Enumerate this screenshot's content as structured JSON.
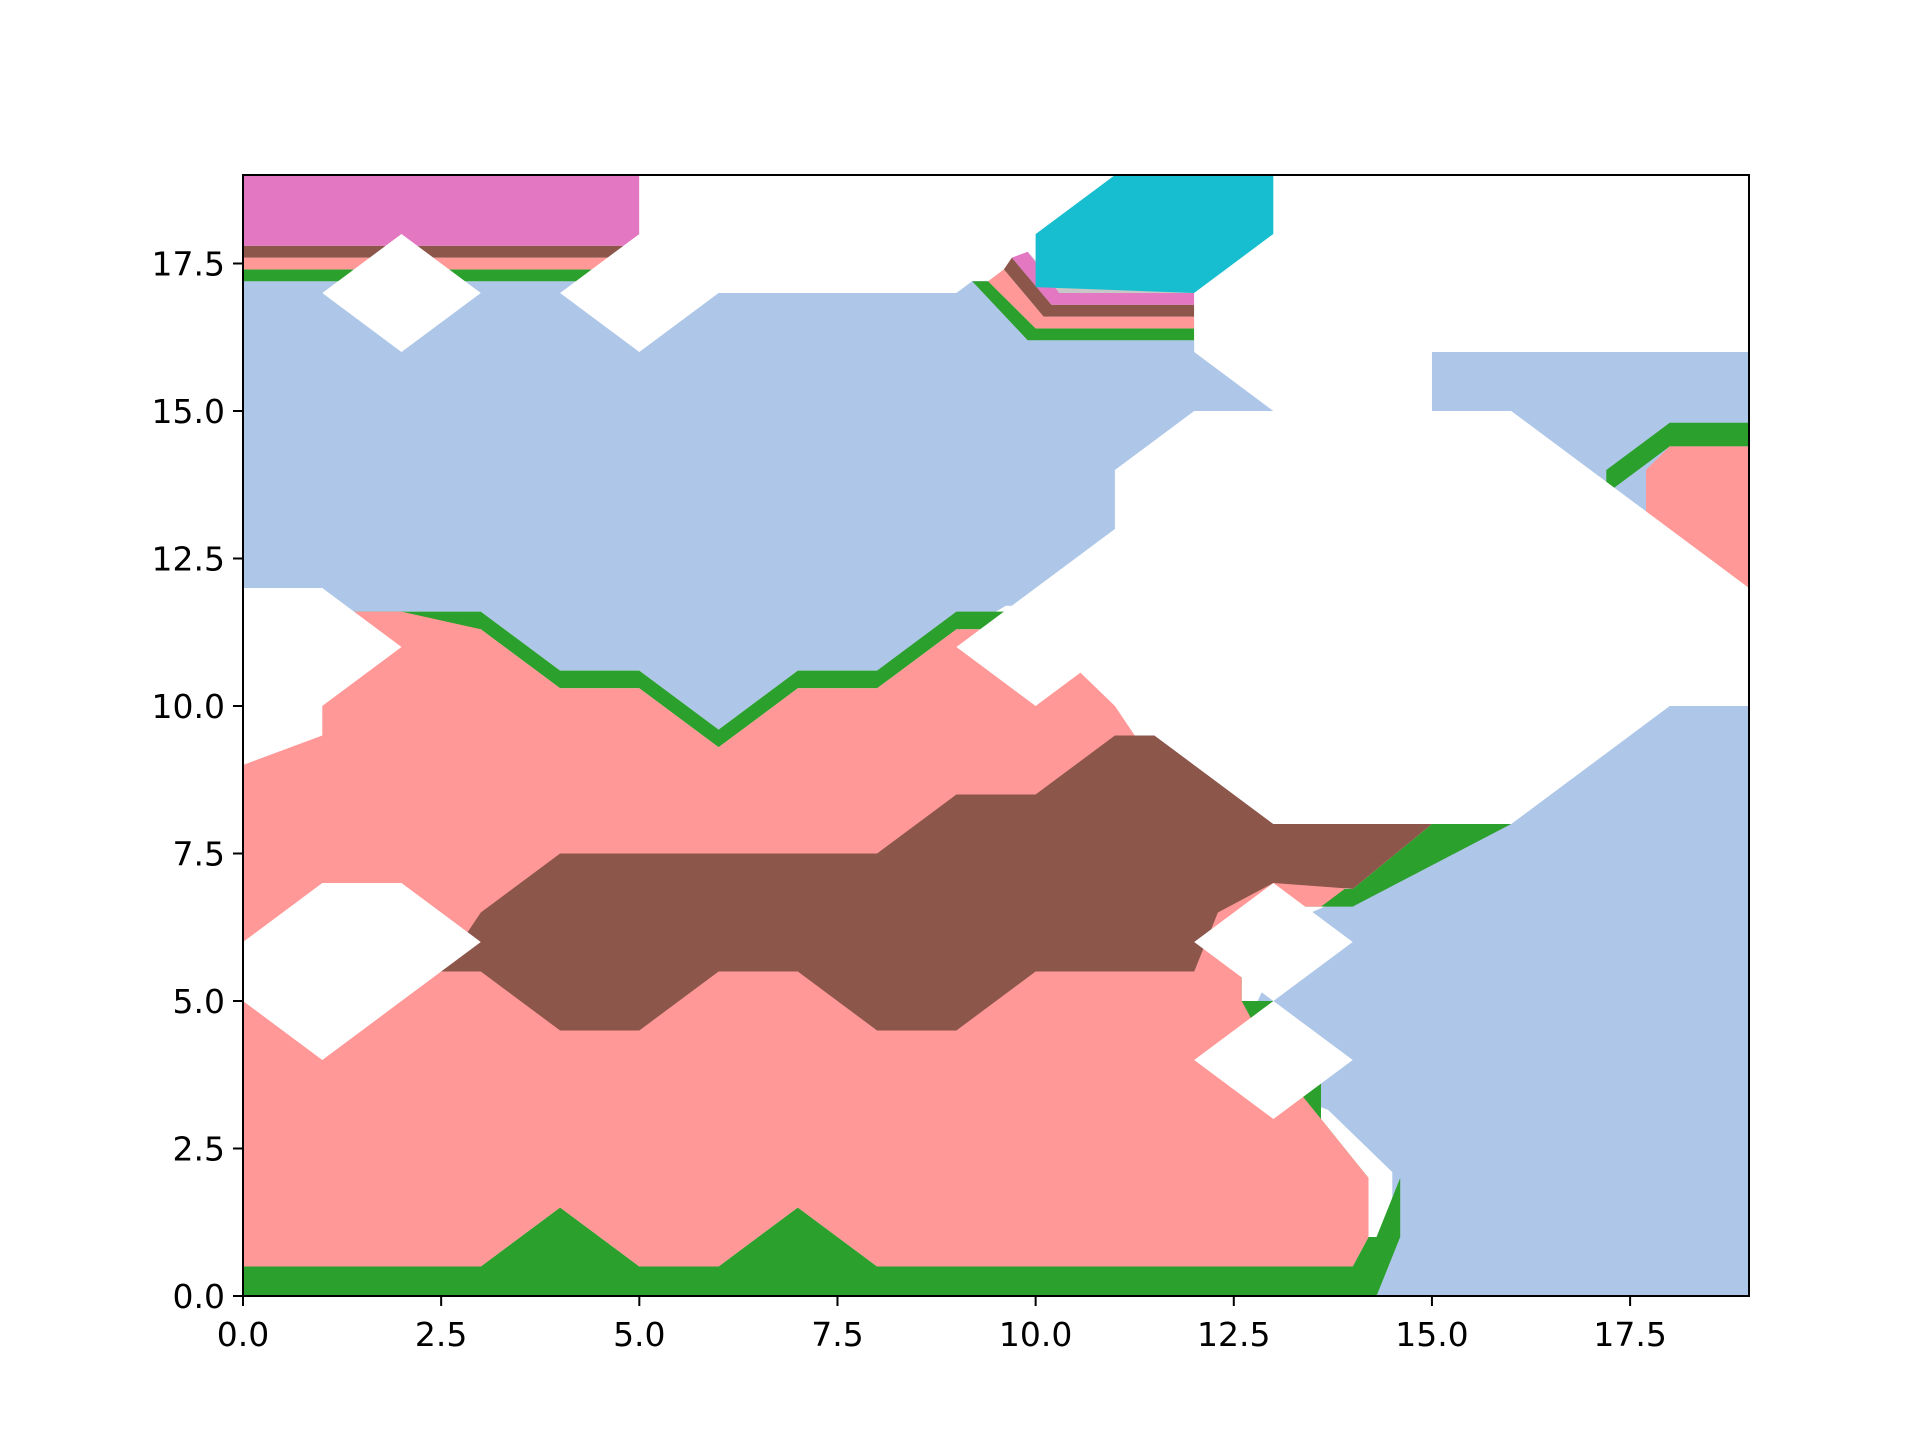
{
  "chart_data": {
    "type": "contourf",
    "title": "",
    "xlabel": "",
    "ylabel": "",
    "xlim": [
      0,
      19
    ],
    "ylim": [
      0,
      19
    ],
    "grid": false,
    "legend": "none",
    "x_ticks": [
      0.0,
      2.5,
      5.0,
      7.5,
      10.0,
      12.5,
      15.0,
      17.5
    ],
    "y_ticks": [
      0.0,
      2.5,
      5.0,
      7.5,
      10.0,
      12.5,
      15.0,
      17.5
    ],
    "x_tick_labels": [
      "0.0",
      "2.5",
      "5.0",
      "7.5",
      "10.0",
      "12.5",
      "15.0",
      "17.5"
    ],
    "y_tick_labels": [
      "0.0",
      "2.5",
      "5.0",
      "7.5",
      "10.0",
      "12.5",
      "15.0",
      "17.5"
    ],
    "colors": {
      "light_blue": "#aec7e8",
      "green": "#2ca02c",
      "salmon": "#ff9896",
      "brown": "#8c564b",
      "pink": "#e377c2",
      "light_gray": "#c7c7c7",
      "cyan": "#17becf",
      "background": "#ffffff"
    },
    "regions": [
      {
        "level": "light_blue",
        "points": [
          [
            0,
            12
          ],
          [
            0,
            17.2
          ],
          [
            9.5,
            17.2
          ],
          [
            9.5,
            16.2
          ],
          [
            12,
            16.2
          ],
          [
            12,
            16
          ],
          [
            13,
            15
          ],
          [
            15,
            15
          ],
          [
            15,
            16
          ],
          [
            19,
            16
          ],
          [
            19,
            10
          ],
          [
            18,
            10
          ],
          [
            16,
            8
          ],
          [
            15,
            8
          ],
          [
            14,
            6.8
          ],
          [
            13.3,
            6.4
          ],
          [
            12.8,
            5
          ],
          [
            13,
            4.3
          ],
          [
            13.5,
            3.4
          ],
          [
            14.5,
            2.1
          ],
          [
            14.5,
            1.1
          ],
          [
            14,
            0
          ],
          [
            19,
            0
          ],
          [
            19,
            11
          ],
          [
            10,
            11
          ],
          [
            10,
            11.7
          ],
          [
            0,
            11.7
          ]
        ]
      },
      {
        "level": "light_blue",
        "points": [
          [
            0,
            11.7
          ],
          [
            0,
            17.2
          ],
          [
            9.5,
            17.2
          ],
          [
            10,
            16.2
          ],
          [
            12,
            16.2
          ],
          [
            13,
            15
          ],
          [
            11,
            14
          ],
          [
            11,
            13
          ],
          [
            10,
            12
          ],
          [
            9.5,
            11.6
          ],
          [
            8,
            10.6
          ],
          [
            7,
            10.6
          ],
          [
            6,
            9.6
          ],
          [
            5,
            10.6
          ],
          [
            4,
            10.6
          ],
          [
            3,
            11.6
          ],
          [
            1,
            11.6
          ],
          [
            0,
            12
          ]
        ]
      },
      {
        "level": "light_blue",
        "points": [
          [
            15,
            16
          ],
          [
            19,
            16
          ],
          [
            19,
            14.8
          ],
          [
            18,
            14.8
          ],
          [
            17,
            14
          ],
          [
            15,
            15
          ]
        ]
      },
      {
        "level": "light_blue",
        "points": [
          [
            13,
            5
          ],
          [
            14,
            6
          ],
          [
            15,
            7
          ],
          [
            16,
            8
          ],
          [
            18,
            10
          ],
          [
            19,
            10
          ],
          [
            19,
            0
          ],
          [
            14.3,
            0
          ],
          [
            14.6,
            2
          ],
          [
            14,
            3
          ],
          [
            13.6,
            3.2
          ],
          [
            13.6,
            4
          ],
          [
            13.3,
            5.5
          ]
        ]
      },
      {
        "level": "green",
        "points": [
          [
            0,
            0
          ],
          [
            0,
            0.5
          ],
          [
            3,
            0.5
          ],
          [
            4,
            1.5
          ],
          [
            5,
            0.5
          ],
          [
            6,
            0.5
          ],
          [
            7,
            1.5
          ],
          [
            8,
            0.5
          ],
          [
            14,
            0.5
          ],
          [
            14.2,
            1
          ],
          [
            14.2,
            2
          ],
          [
            13.6,
            3
          ],
          [
            13.6,
            4
          ],
          [
            13,
            5
          ],
          [
            12.6,
            5
          ],
          [
            12.6,
            6.3
          ],
          [
            13,
            6.6
          ],
          [
            14,
            6.6
          ],
          [
            16,
            8
          ],
          [
            15,
            8
          ],
          [
            14,
            6.9
          ],
          [
            13,
            6.9
          ],
          [
            12.2,
            6
          ],
          [
            12.3,
            5
          ],
          [
            12.5,
            4
          ],
          [
            12.3,
            3
          ],
          [
            12.5,
            1
          ],
          [
            14.3,
            1
          ],
          [
            14.6,
            2
          ],
          [
            14.6,
            1
          ],
          [
            14.3,
            0
          ]
        ]
      },
      {
        "level": "green",
        "points": [
          [
            0,
            6
          ],
          [
            0,
            8.5
          ],
          [
            1,
            8.5
          ],
          [
            2.5,
            7
          ],
          [
            1,
            6
          ]
        ]
      },
      {
        "level": "green",
        "points": [
          [
            0,
            11.3
          ],
          [
            0,
            11.6
          ],
          [
            3,
            11.6
          ],
          [
            4,
            10.6
          ],
          [
            5,
            10.6
          ],
          [
            6,
            9.6
          ],
          [
            7,
            10.6
          ],
          [
            8,
            10.6
          ],
          [
            9,
            11.6
          ],
          [
            10,
            11.6
          ],
          [
            10,
            11.3
          ],
          [
            9,
            11.3
          ],
          [
            8,
            10.3
          ],
          [
            7,
            10.3
          ],
          [
            6,
            9.3
          ],
          [
            5,
            10.3
          ],
          [
            4,
            10.3
          ],
          [
            3,
            11.3
          ]
        ]
      },
      {
        "level": "green",
        "points": [
          [
            0,
            17.2
          ],
          [
            0,
            17.4
          ],
          [
            5,
            17.4
          ],
          [
            5,
            17.2
          ]
        ]
      },
      {
        "level": "green",
        "points": [
          [
            9.2,
            17.2
          ],
          [
            9.9,
            16.2
          ],
          [
            12,
            16.2
          ],
          [
            12,
            16.4
          ],
          [
            10,
            16.4
          ],
          [
            9.4,
            17.2
          ]
        ]
      },
      {
        "level": "green",
        "points": [
          [
            17.2,
            14
          ],
          [
            17.2,
            13.6
          ],
          [
            18,
            14.4
          ],
          [
            19,
            14.4
          ],
          [
            19,
            14.8
          ],
          [
            18,
            14.8
          ]
        ]
      },
      {
        "level": "salmon",
        "points": [
          [
            0,
            0.5
          ],
          [
            0,
            9
          ],
          [
            1,
            9.5
          ],
          [
            1,
            11.6
          ],
          [
            2,
            11.6
          ],
          [
            3,
            11.3
          ],
          [
            4,
            10.3
          ],
          [
            5,
            10.3
          ],
          [
            6,
            9.3
          ],
          [
            7,
            10.3
          ],
          [
            8,
            10.3
          ],
          [
            9,
            11.3
          ],
          [
            10,
            11.3
          ],
          [
            11,
            10
          ],
          [
            12,
            8
          ],
          [
            13,
            7.2
          ],
          [
            14,
            6.9
          ],
          [
            15,
            8
          ],
          [
            13.6,
            6.6
          ],
          [
            13,
            6.6
          ],
          [
            12.6,
            6.3
          ],
          [
            12.6,
            5
          ],
          [
            13,
            4
          ],
          [
            13.6,
            3
          ],
          [
            14.2,
            2
          ],
          [
            14.2,
            1
          ],
          [
            14,
            0.5
          ],
          [
            8,
            0.5
          ],
          [
            7,
            1.5
          ],
          [
            6,
            0.5
          ],
          [
            5,
            0.5
          ],
          [
            4,
            1.5
          ],
          [
            3,
            0.5
          ]
        ]
      },
      {
        "level": "salmon",
        "points": [
          [
            17.7,
            13.2
          ],
          [
            17.7,
            14
          ],
          [
            18,
            14.4
          ],
          [
            19,
            14.4
          ],
          [
            19,
            12
          ]
        ]
      },
      {
        "level": "salmon",
        "points": [
          [
            0,
            17.4
          ],
          [
            0,
            17.6
          ],
          [
            5,
            17.6
          ],
          [
            5,
            17.4
          ]
        ]
      },
      {
        "level": "salmon",
        "points": [
          [
            9.4,
            17.2
          ],
          [
            10,
            16.4
          ],
          [
            12,
            16.4
          ],
          [
            12,
            16.6
          ],
          [
            10.1,
            16.6
          ],
          [
            9.6,
            17.4
          ]
        ]
      },
      {
        "level": "brown",
        "points": [
          [
            2.5,
            5.5
          ],
          [
            3,
            5.5
          ],
          [
            4,
            4.5
          ],
          [
            5,
            4.5
          ],
          [
            6,
            5.5
          ],
          [
            7,
            5.5
          ],
          [
            8,
            4.5
          ],
          [
            9,
            4.5
          ],
          [
            10,
            5.5
          ],
          [
            12,
            5.5
          ],
          [
            12.3,
            6.5
          ],
          [
            13,
            7
          ],
          [
            14,
            6.9
          ],
          [
            15,
            8
          ],
          [
            13,
            8
          ],
          [
            11.5,
            9.5
          ],
          [
            11,
            9.5
          ],
          [
            10,
            8.5
          ],
          [
            9,
            8.5
          ],
          [
            8,
            7.5
          ],
          [
            4,
            7.5
          ],
          [
            3,
            6.5
          ]
        ]
      },
      {
        "level": "brown",
        "points": [
          [
            0,
            17.6
          ],
          [
            0,
            17.8
          ],
          [
            5,
            17.8
          ],
          [
            5,
            17.6
          ]
        ]
      },
      {
        "level": "brown",
        "points": [
          [
            9.6,
            17.4
          ],
          [
            10.1,
            16.6
          ],
          [
            12,
            16.6
          ],
          [
            12,
            16.8
          ],
          [
            10.2,
            16.8
          ],
          [
            9.7,
            17.6
          ]
        ]
      },
      {
        "level": "pink",
        "points": [
          [
            0,
            17.8
          ],
          [
            0,
            19
          ],
          [
            5,
            19
          ],
          [
            5,
            17.8
          ]
        ]
      },
      {
        "level": "pink",
        "points": [
          [
            9.7,
            17.6
          ],
          [
            10.2,
            16.8
          ],
          [
            12,
            16.8
          ],
          [
            12,
            17
          ],
          [
            10.3,
            17
          ],
          [
            9.9,
            17.7
          ]
        ]
      },
      {
        "level": "light_gray",
        "points": [
          [
            9.9,
            17.7
          ],
          [
            10.3,
            17
          ],
          [
            12,
            17
          ],
          [
            12,
            17.1
          ],
          [
            10.3,
            17.1
          ]
        ]
      },
      {
        "level": "cyan",
        "points": [
          [
            10,
            17.1
          ],
          [
            10,
            18
          ],
          [
            11,
            19
          ],
          [
            13,
            19
          ],
          [
            13,
            18
          ],
          [
            12,
            17
          ]
        ]
      },
      {
        "level": "background",
        "points": [
          [
            5,
            19
          ],
          [
            5,
            18
          ],
          [
            4,
            17
          ],
          [
            5,
            16
          ],
          [
            6,
            17
          ],
          [
            9,
            17
          ],
          [
            10,
            18
          ],
          [
            11,
            19
          ]
        ]
      },
      {
        "level": "background",
        "points": [
          [
            13,
            19
          ],
          [
            13,
            18
          ],
          [
            12,
            17
          ],
          [
            12,
            16
          ],
          [
            13,
            15
          ],
          [
            15,
            15
          ],
          [
            15,
            16
          ],
          [
            19,
            16
          ],
          [
            19,
            19
          ]
        ]
      },
      {
        "level": "background",
        "points": [
          [
            1,
            17
          ],
          [
            2,
            18
          ],
          [
            3,
            17
          ],
          [
            2,
            16
          ]
        ]
      },
      {
        "level": "background",
        "points": [
          [
            0,
            9
          ],
          [
            0,
            12
          ],
          [
            1,
            12
          ],
          [
            2,
            11
          ]
        ]
      },
      {
        "level": "background",
        "points": [
          [
            0,
            5
          ],
          [
            0,
            6
          ],
          [
            1,
            7
          ],
          [
            2,
            7
          ],
          [
            3,
            6
          ],
          [
            1,
            4
          ]
        ]
      },
      {
        "level": "background",
        "points": [
          [
            9,
            11
          ],
          [
            10,
            10
          ],
          [
            11,
            11
          ],
          [
            11,
            10
          ],
          [
            13,
            8
          ],
          [
            16,
            8
          ],
          [
            18,
            10
          ],
          [
            19,
            10
          ],
          [
            19,
            12
          ],
          [
            16,
            15
          ],
          [
            12,
            15
          ],
          [
            11,
            14
          ],
          [
            11,
            13
          ]
        ]
      },
      {
        "level": "background",
        "points": [
          [
            12,
            6
          ],
          [
            13,
            7
          ],
          [
            14,
            6
          ],
          [
            13,
            5
          ]
        ]
      },
      {
        "level": "background",
        "points": [
          [
            12,
            4
          ],
          [
            13,
            5
          ],
          [
            14,
            4
          ],
          [
            13,
            3
          ]
        ]
      }
    ]
  }
}
